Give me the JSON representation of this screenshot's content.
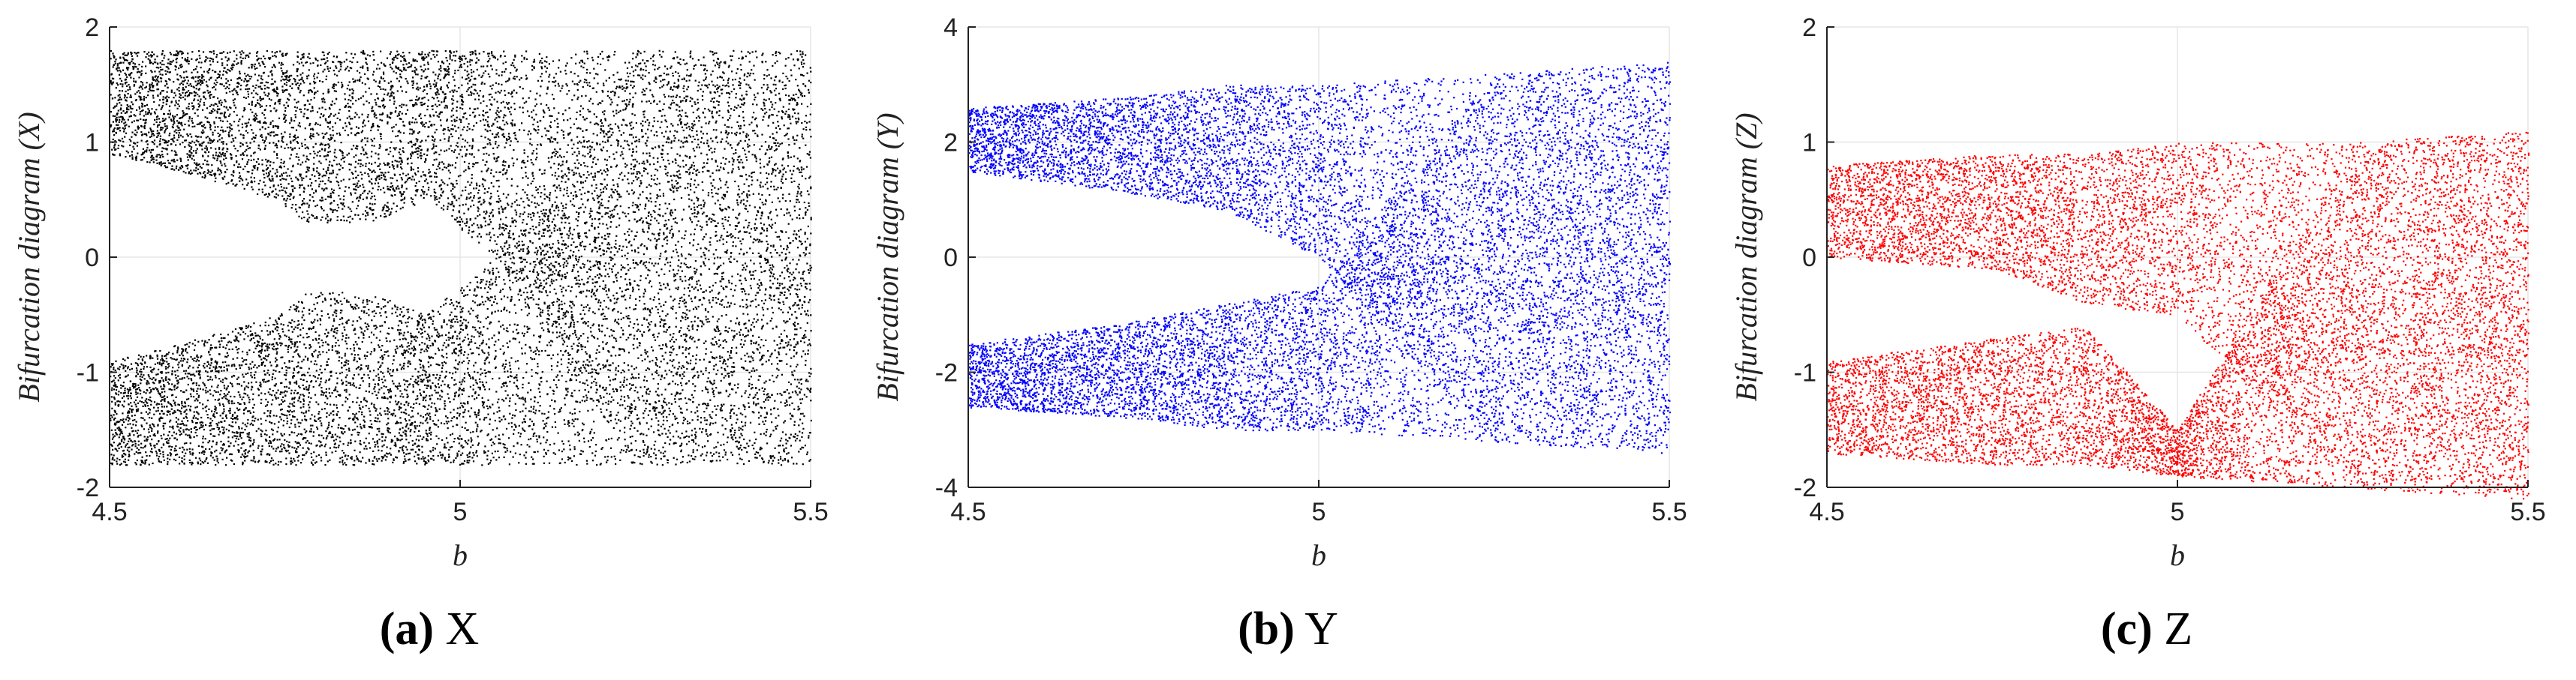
{
  "chart_data": [
    {
      "type": "scatter",
      "panel": "a",
      "caption_label": "(a)",
      "caption_text": "X",
      "xlabel": "b",
      "ylabel": "Bifurcation diagram (X)",
      "xlim": [
        4.5,
        5.5
      ],
      "ylim": [
        -2,
        2
      ],
      "xticks": [
        4.5,
        5,
        5.5
      ],
      "xtick_labels": [
        "4.5",
        "5",
        "5.5"
      ],
      "yticks": [
        -2,
        -1,
        0,
        1,
        2
      ],
      "ytick_labels": [
        "-2",
        "-1",
        "0",
        "1",
        "2"
      ],
      "grid": true,
      "color": "#000000",
      "envelope": [
        {
          "x": 4.5,
          "upper": [
            0.9,
            1.8
          ],
          "lower": [
            -1.8,
            -0.9
          ]
        },
        {
          "x": 4.6,
          "upper": [
            0.75,
            1.8
          ],
          "lower": [
            -1.8,
            -0.75
          ]
        },
        {
          "x": 4.74,
          "upper": [
            0.5,
            1.8
          ],
          "lower": [
            -1.8,
            -0.5
          ]
        },
        {
          "x": 4.78,
          "upper": [
            0.3,
            1.8
          ],
          "lower": [
            -1.8,
            -0.3
          ]
        },
        {
          "x": 4.87,
          "upper": [
            0.3,
            1.8
          ],
          "lower": [
            -1.8,
            -0.3
          ]
        },
        {
          "x": 4.95,
          "upper": [
            0.5,
            1.8
          ],
          "lower": [
            -1.8,
            -0.5
          ]
        },
        {
          "x": 5.05,
          "upper": [
            0.0,
            1.8
          ],
          "lower": [
            -1.8,
            0.0
          ]
        },
        {
          "x": 5.25,
          "upper": [
            -1.8,
            1.8
          ],
          "lower": [
            -1.8,
            1.8
          ]
        },
        {
          "x": 5.5,
          "upper": [
            -1.8,
            1.8
          ],
          "lower": [
            -1.8,
            1.8
          ]
        }
      ]
    },
    {
      "type": "scatter",
      "panel": "b",
      "caption_label": "(b)",
      "caption_text": "Y",
      "xlabel": "b",
      "ylabel": "Bifurcation diagram (Y)",
      "xlim": [
        4.5,
        5.5
      ],
      "ylim": [
        -4,
        4
      ],
      "xticks": [
        4.5,
        5,
        5.5
      ],
      "xtick_labels": [
        "4.5",
        "5",
        "5.5"
      ],
      "yticks": [
        -4,
        -2,
        0,
        2,
        4
      ],
      "ytick_labels": [
        "-4",
        "-2",
        "0",
        "2",
        "4"
      ],
      "grid": true,
      "color": "#0000ff",
      "envelope": [
        {
          "x": 4.5,
          "upper": [
            1.5,
            2.6
          ],
          "lower": [
            -2.6,
            -1.5
          ]
        },
        {
          "x": 4.74,
          "upper": [
            1.1,
            2.8
          ],
          "lower": [
            -2.8,
            -1.1
          ]
        },
        {
          "x": 4.87,
          "upper": [
            0.8,
            3.0
          ],
          "lower": [
            -3.0,
            -0.8
          ]
        },
        {
          "x": 5.0,
          "upper": [
            0.0,
            3.0
          ],
          "lower": [
            -3.0,
            -0.5
          ]
        },
        {
          "x": 5.25,
          "upper": [
            -3.2,
            3.2
          ],
          "lower": [
            -3.2,
            3.2
          ]
        },
        {
          "x": 5.5,
          "upper": [
            -3.4,
            3.4
          ],
          "lower": [
            -3.4,
            3.4
          ]
        }
      ]
    },
    {
      "type": "scatter",
      "panel": "c",
      "caption_label": "(c)",
      "caption_text": "Z",
      "xlabel": "b",
      "ylabel": "Bifurcation diagram (Z)",
      "xlim": [
        4.5,
        5.5
      ],
      "ylim": [
        -2,
        2
      ],
      "xticks": [
        4.5,
        5,
        5.5
      ],
      "xtick_labels": [
        "4.5",
        "5",
        "5.5"
      ],
      "yticks": [
        -2,
        -1,
        0,
        1,
        2
      ],
      "ytick_labels": [
        "-2",
        "-1",
        "0",
        "1",
        "2"
      ],
      "grid": true,
      "color": "#ff0000",
      "envelope": [
        {
          "x": 4.5,
          "upper": [
            0.0,
            0.8
          ],
          "lower": [
            -1.7,
            -0.9
          ]
        },
        {
          "x": 4.74,
          "upper": [
            -0.1,
            0.9
          ],
          "lower": [
            -1.8,
            -0.7
          ]
        },
        {
          "x": 4.87,
          "upper": [
            -0.4,
            0.9
          ],
          "lower": [
            -1.8,
            -0.6
          ]
        },
        {
          "x": 5.0,
          "upper": [
            -0.5,
            1.0
          ],
          "lower": [
            -1.9,
            -1.5
          ]
        },
        {
          "x": 5.25,
          "upper": [
            -2.0,
            1.0
          ],
          "lower": [
            -2.0,
            1.0
          ]
        },
        {
          "x": 5.5,
          "upper": [
            -2.1,
            1.1
          ],
          "lower": [
            -2.1,
            1.1
          ]
        }
      ]
    }
  ]
}
